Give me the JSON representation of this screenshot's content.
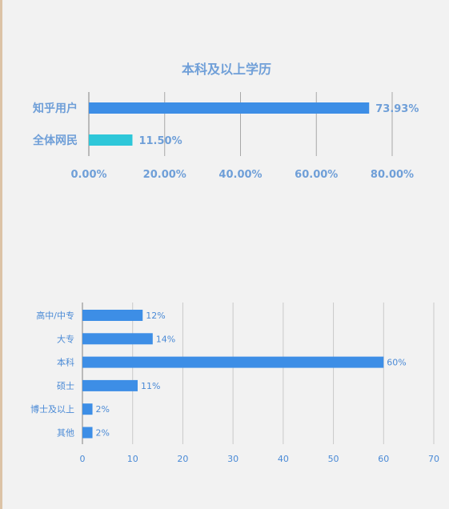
{
  "chart_data": [
    {
      "type": "bar",
      "orientation": "horizontal",
      "title": "本科及以上学历",
      "categories": [
        "知乎用户",
        "全体网民"
      ],
      "values": [
        73.93,
        11.5
      ],
      "value_labels": [
        "73.93%",
        "11.50%"
      ],
      "bar_colors": [
        "#3d8ee6",
        "#2ec7d9"
      ],
      "xlim": [
        0,
        80
      ],
      "xticks": [
        0,
        20,
        40,
        60,
        80
      ],
      "xtick_labels": [
        "0.00%",
        "20.00%",
        "40.00%",
        "60.00%",
        "80.00%"
      ],
      "grid": true,
      "xlabel": "",
      "ylabel": ""
    },
    {
      "type": "bar",
      "orientation": "horizontal",
      "title": "",
      "categories": [
        "高中/中专",
        "大专",
        "本科",
        "硕士",
        "博士及以上",
        "其他"
      ],
      "values": [
        12,
        14,
        60,
        11,
        2,
        2
      ],
      "value_labels": [
        "12%",
        "14%",
        "60%",
        "11%",
        "2%",
        "2%"
      ],
      "bar_color": "#3d8ee6",
      "xlim": [
        0,
        70
      ],
      "xticks": [
        0,
        10,
        20,
        30,
        40,
        50,
        60,
        70
      ],
      "xtick_labels": [
        "0",
        "10",
        "20",
        "30",
        "40",
        "50",
        "60",
        "70"
      ],
      "grid": true,
      "xlabel": "",
      "ylabel": ""
    }
  ],
  "colors": {
    "label_text": "#6f9fd8",
    "grid1": "#a8a8a8",
    "grid2": "#c9c9c9",
    "tick_text2": "#4a8ad6"
  }
}
